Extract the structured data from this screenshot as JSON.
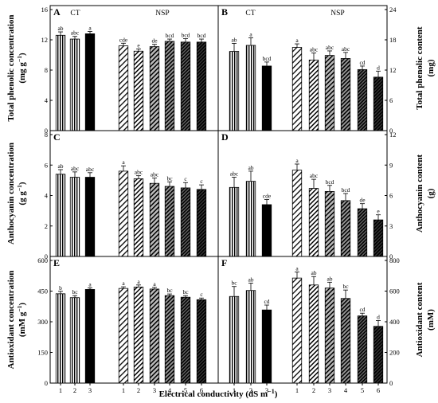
{
  "figure": {
    "xlabel": "Electrical conductivity (dS m",
    "xlabel_sup": "−1",
    "xlabel_close": ")",
    "groups": [
      "CT",
      "NSP"
    ]
  },
  "chart_data": [
    {
      "id": "A",
      "type": "bar",
      "side": "left",
      "ylabel": [
        "Total phenolic concentration",
        "(mg g",
        "−1",
        ")"
      ],
      "ylim": [
        0,
        16
      ],
      "yticks": [
        0,
        4,
        8,
        12,
        16
      ],
      "x": [
        "1",
        "2",
        "3",
        "1",
        "2",
        "3",
        "4",
        "5",
        "6"
      ],
      "group": [
        "CT",
        "CT",
        "CT",
        "NSP",
        "NSP",
        "NSP",
        "NSP",
        "NSP",
        "NSP"
      ],
      "values": [
        12.6,
        12.1,
        12.8,
        11.2,
        10.5,
        11.1,
        11.8,
        11.7,
        11.7
      ],
      "errors": [
        0.45,
        0.35,
        0.3,
        0.35,
        0.3,
        0.3,
        0.3,
        0.45,
        0.4
      ],
      "letters": [
        "ab",
        "abc",
        "a",
        "cde",
        "e",
        "de",
        "bcd",
        "bcd",
        "bcd"
      ]
    },
    {
      "id": "B",
      "type": "bar",
      "side": "right",
      "ylabel": [
        "Total phenolic content",
        "(mg)"
      ],
      "ylim": [
        0,
        24
      ],
      "yticks": [
        0,
        6,
        12,
        18,
        24
      ],
      "x": [
        "1",
        "2",
        "3",
        "1",
        "2",
        "3",
        "4",
        "5",
        "6"
      ],
      "group": [
        "CT",
        "CT",
        "CT",
        "NSP",
        "NSP",
        "NSP",
        "NSP",
        "NSP",
        "NSP"
      ],
      "values": [
        15.7,
        16.9,
        12.8,
        16.5,
        14.0,
        14.9,
        14.3,
        12.1,
        10.6
      ],
      "errors": [
        1.6,
        1.5,
        0.8,
        0.7,
        1.4,
        0.9,
        1.2,
        0.7,
        1.2
      ],
      "letters": [
        "ab",
        "a",
        "bcd",
        "a",
        "abc",
        "abc",
        "abc",
        "cd",
        "d"
      ]
    },
    {
      "id": "C",
      "type": "bar",
      "side": "left",
      "ylabel": [
        "Anthocyanin concentration",
        "(g g",
        "−1",
        ")"
      ],
      "ylim": [
        0,
        8
      ],
      "yticks": [
        0,
        2,
        4,
        6,
        8
      ],
      "x": [
        "1",
        "2",
        "3",
        "1",
        "2",
        "3",
        "4",
        "5",
        "6"
      ],
      "group": [
        "CT",
        "CT",
        "CT",
        "NSP",
        "NSP",
        "NSP",
        "NSP",
        "NSP",
        "NSP"
      ],
      "values": [
        5.4,
        5.2,
        5.2,
        5.6,
        5.1,
        4.8,
        4.6,
        4.5,
        4.4
      ],
      "errors": [
        0.3,
        0.35,
        0.3,
        0.35,
        0.2,
        0.35,
        0.3,
        0.35,
        0.3
      ],
      "letters": [
        "ab",
        "abc",
        "abc",
        "a",
        "abc",
        "abc",
        "bc",
        "c",
        "c"
      ]
    },
    {
      "id": "D",
      "type": "bar",
      "side": "right",
      "ylabel": [
        "Anthocyanin content",
        "(g)"
      ],
      "ylim": [
        0,
        12
      ],
      "yticks": [
        0,
        3,
        6,
        9,
        12
      ],
      "x": [
        "1",
        "2",
        "3",
        "1",
        "2",
        "3",
        "4",
        "5",
        "6"
      ],
      "group": [
        "CT",
        "CT",
        "CT",
        "NSP",
        "NSP",
        "NSP",
        "NSP",
        "NSP",
        "NSP"
      ],
      "values": [
        6.8,
        7.4,
        5.1,
        8.5,
        6.7,
        6.4,
        5.5,
        4.7,
        3.6
      ],
      "errors": [
        1.0,
        1.0,
        0.5,
        0.6,
        0.9,
        0.6,
        0.7,
        0.5,
        0.5
      ],
      "letters": [
        "abc",
        "ab",
        "cde",
        "a",
        "abc",
        "bcd",
        "bcd",
        "de",
        "e"
      ]
    },
    {
      "id": "E",
      "type": "bar",
      "side": "left",
      "ylabel": [
        "Antioxidant concentration",
        "(mM g",
        "−1",
        ")"
      ],
      "ylim": [
        0,
        600
      ],
      "yticks": [
        0,
        150,
        300,
        450,
        600
      ],
      "x": [
        "1",
        "2",
        "3",
        "1",
        "2",
        "3",
        "4",
        "5",
        "6"
      ],
      "group": [
        "CT",
        "CT",
        "CT",
        "NSP",
        "NSP",
        "NSP",
        "NSP",
        "NSP",
        "NSP"
      ],
      "values": [
        437,
        418,
        458,
        463,
        470,
        460,
        428,
        420,
        408
      ],
      "errors": [
        12,
        10,
        8,
        8,
        10,
        8,
        8,
        8,
        8
      ],
      "letters": [
        "b",
        "bc",
        "a",
        "a",
        "a",
        "a",
        "bc",
        "bc",
        "c"
      ]
    },
    {
      "id": "F",
      "type": "bar",
      "side": "right",
      "ylabel": [
        "Antioxidant content",
        "(mM)"
      ],
      "ylim": [
        0,
        800
      ],
      "yticks": [
        0,
        200,
        400,
        600,
        800
      ],
      "x": [
        "1",
        "2",
        "3",
        "1",
        "2",
        "3",
        "4",
        "5",
        "6"
      ],
      "group": [
        "CT",
        "CT",
        "CT",
        "NSP",
        "NSP",
        "NSP",
        "NSP",
        "NSP",
        "NSP"
      ],
      "values": [
        565,
        604,
        477,
        685,
        640,
        620,
        552,
        438,
        370
      ],
      "errors": [
        65,
        48,
        32,
        40,
        55,
        38,
        55,
        18,
        38
      ],
      "letters": [
        "bc",
        "ab",
        "cd",
        "a",
        "ab",
        "ab",
        "bc",
        "cd",
        "d"
      ]
    }
  ]
}
